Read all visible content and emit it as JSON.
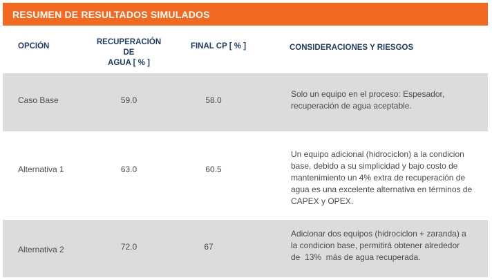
{
  "title": "RESUMEN DE RESULTADOS SIMULADOS",
  "columns": {
    "opcion": "OPCIÓN",
    "recuperacion_line1": "RECUPERACIÓN DE",
    "recuperacion_line2": "AGUA [ % ]",
    "final_cp": "FINAL CP [ % ]",
    "consideraciones": "CONSIDERACIONES Y RIESGOS"
  },
  "rows": [
    {
      "opcion": "Caso Base",
      "recuperacion": "59.0",
      "final_cp": "58.0",
      "consideraciones": [
        "Solo un equipo en el proceso: Espesador,",
        "recuperación de agua aceptable."
      ]
    },
    {
      "opcion": "Alternativa 1",
      "recuperacion": "63.0",
      "final_cp": "60.5",
      "consideraciones": [
        "Un equipo adicional (hidrociclon) a la condicion",
        "base, debido a su simplicidad y bajo costo de",
        "mantenimiento un 4% extra de recuperación de",
        "agua es una excelente alternativa en términos de",
        "CAPEX y OPEX."
      ]
    },
    {
      "opcion": "Alternativa 2",
      "recuperacion": "72.0",
      "final_cp": "67",
      "consideraciones": [
        "Adicionar dos equipos (hidrociclon + zaranda) a",
        "la condicion base, permitirá obtener alrededor",
        "de  13%  más de agua recuperada."
      ]
    }
  ],
  "colors": {
    "title_bar": "#f26a21",
    "header_text": "#1f3d63",
    "row_shade": "#dcdcdc"
  }
}
